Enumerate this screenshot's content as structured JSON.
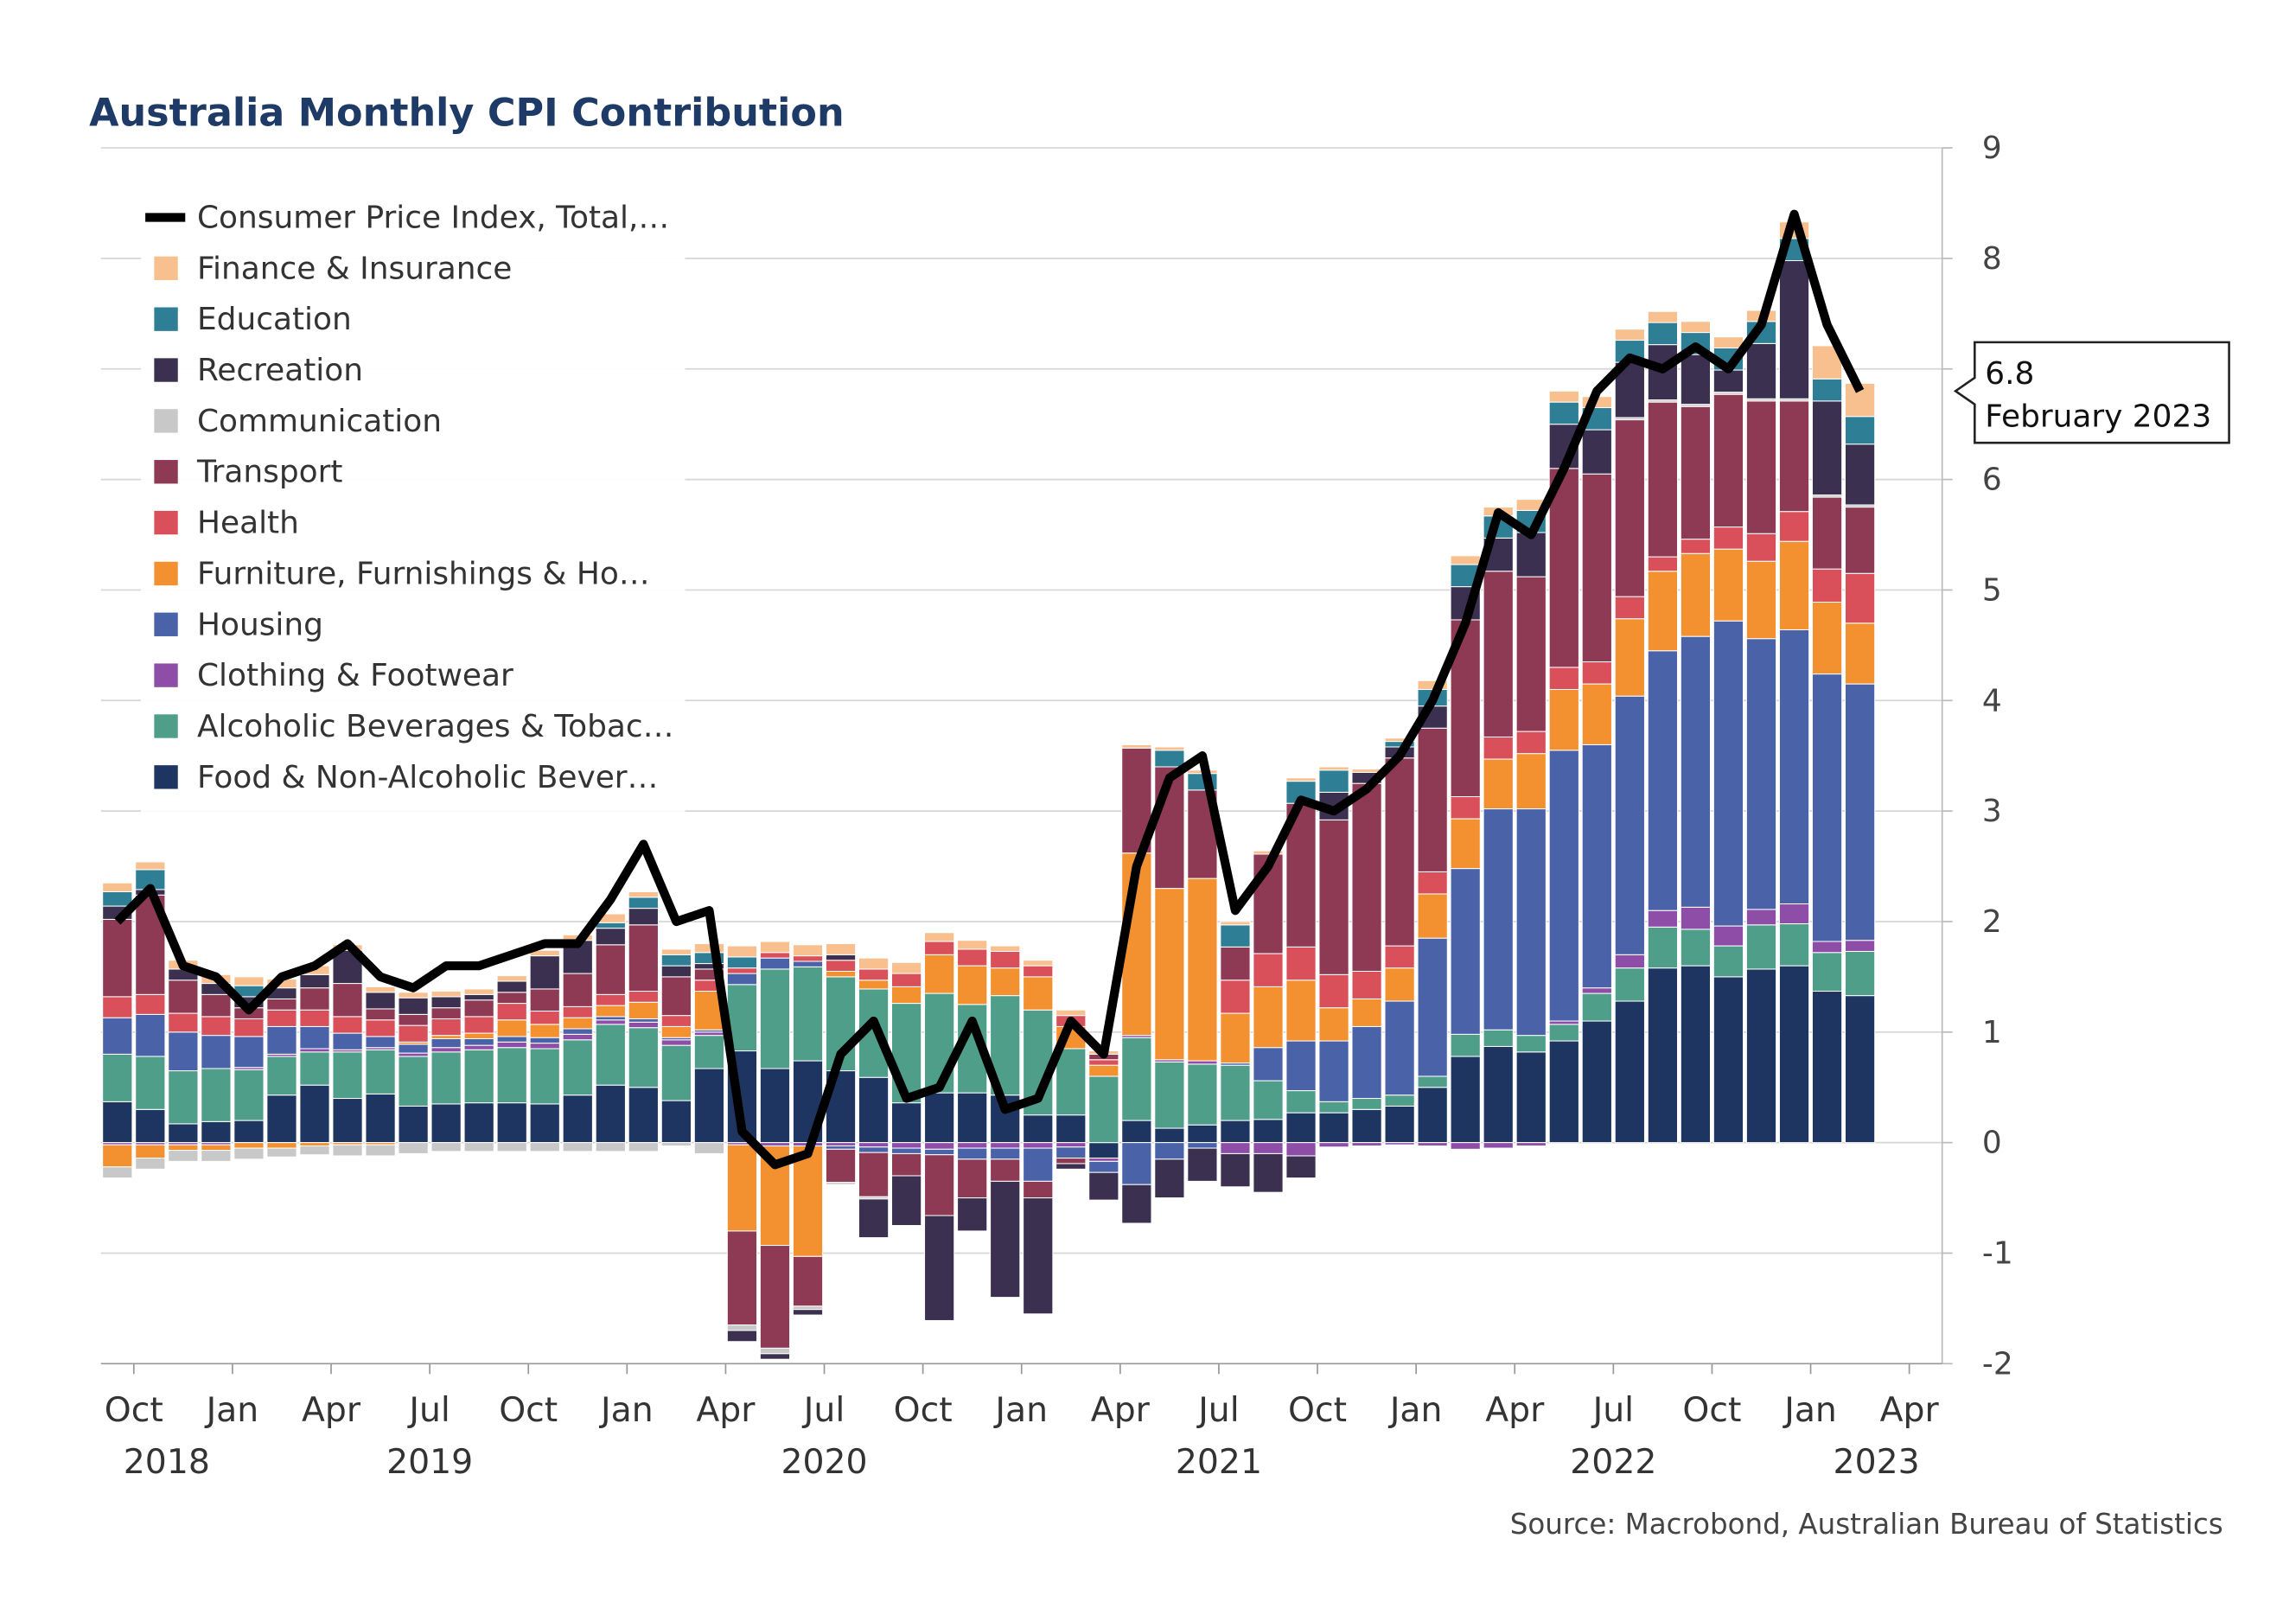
{
  "chart_data": {
    "type": "bar",
    "stacked": true,
    "title": "Australia Monthly CPI Contribution",
    "source": "Source: Macrobond, Australian Bureau of Statistics",
    "annotation": {
      "text": "February 2023"
    },
    "x": [
      "2018-09",
      "2018-10",
      "2018-11",
      "2018-12",
      "2019-01",
      "2019-02",
      "2019-03",
      "2019-04",
      "2019-05",
      "2019-06",
      "2019-07",
      "2019-08",
      "2019-09",
      "2019-10",
      "2019-11",
      "2019-12",
      "2020-01",
      "2020-02",
      "2020-03",
      "2020-04",
      "2020-05",
      "2020-06",
      "2020-07",
      "2020-08",
      "2020-09",
      "2020-10",
      "2020-11",
      "2020-12",
      "2021-01",
      "2021-02",
      "2021-03",
      "2021-04",
      "2021-05",
      "2021-06",
      "2021-07",
      "2021-08",
      "2021-09",
      "2021-10",
      "2021-11",
      "2021-12",
      "2022-01",
      "2022-02",
      "2022-03",
      "2022-04",
      "2022-05",
      "2022-06",
      "2022-07",
      "2022-08",
      "2022-09",
      "2022-10",
      "2022-11",
      "2022-12",
      "2023-01",
      "2023-02"
    ],
    "xlim": [
      "2018-09",
      "2023-05"
    ],
    "xticks": [
      {
        "value": "2018-10",
        "label": "Oct"
      },
      {
        "value": "2019-01",
        "label": "Jan"
      },
      {
        "value": "2019-04",
        "label": "Apr"
      },
      {
        "value": "2019-07",
        "label": "Jul"
      },
      {
        "value": "2019-10",
        "label": "Oct"
      },
      {
        "value": "2020-01",
        "label": "Jan"
      },
      {
        "value": "2020-04",
        "label": "Apr"
      },
      {
        "value": "2020-07",
        "label": "Jul"
      },
      {
        "value": "2020-10",
        "label": "Oct"
      },
      {
        "value": "2021-01",
        "label": "Jan"
      },
      {
        "value": "2021-04",
        "label": "Apr"
      },
      {
        "value": "2021-07",
        "label": "Jul"
      },
      {
        "value": "2021-10",
        "label": "Oct"
      },
      {
        "value": "2022-01",
        "label": "Jan"
      },
      {
        "value": "2022-04",
        "label": "Apr"
      },
      {
        "value": "2022-07",
        "label": "Jul"
      },
      {
        "value": "2022-10",
        "label": "Oct"
      },
      {
        "value": "2023-01",
        "label": "Jan"
      },
      {
        "value": "2023-04",
        "label": "Apr"
      }
    ],
    "year_ticks": [
      2018,
      2019,
      2020,
      2021,
      2022,
      2023
    ],
    "ylim": [
      -2,
      9
    ],
    "yticks": [
      -2,
      -1,
      0,
      1,
      2,
      3,
      4,
      5,
      6,
      7,
      8,
      9
    ],
    "y_axis_side": "right",
    "grid": true,
    "legend": "upper left",
    "series": [
      {
        "name": "Consumer Price Index, Total,…",
        "type": "line",
        "color": "#000000",
        "values": [
          2.0,
          2.3,
          1.6,
          1.5,
          1.2,
          1.5,
          1.6,
          1.8,
          1.5,
          1.4,
          1.6,
          1.6,
          1.7,
          1.8,
          1.8,
          2.2,
          2.7,
          2.0,
          2.1,
          0.1,
          -0.2,
          -0.1,
          0.8,
          1.1,
          0.4,
          0.5,
          1.1,
          0.3,
          0.4,
          1.1,
          0.8,
          2.5,
          3.3,
          3.5,
          2.1,
          2.5,
          3.1,
          3.0,
          3.2,
          3.5,
          4.0,
          4.7,
          5.7,
          5.5,
          6.1,
          6.8,
          7.1,
          7.0,
          7.2,
          7.0,
          7.4,
          8.4,
          7.4,
          6.8
        ]
      },
      {
        "name": "Finance & Insurance",
        "color": "#f8c08e",
        "values": [
          0.08,
          0.07,
          0.08,
          0.08,
          0.08,
          0.08,
          0.08,
          0.05,
          0.05,
          0.05,
          0.05,
          0.05,
          0.05,
          0.05,
          0.05,
          0.08,
          0.05,
          0.05,
          0.08,
          0.1,
          0.1,
          0.1,
          0.1,
          0.1,
          0.1,
          0.08,
          0.08,
          0.05,
          0.05,
          0.05,
          0.03,
          0.03,
          0.03,
          0.03,
          0.03,
          0.03,
          0.03,
          0.03,
          0.03,
          0.03,
          0.08,
          0.08,
          0.08,
          0.1,
          0.1,
          0.1,
          0.1,
          0.1,
          0.1,
          0.1,
          0.1,
          0.15,
          0.3,
          0.3
        ]
      },
      {
        "name": "Education",
        "color": "#2e7f96",
        "values": [
          0.13,
          0.18,
          0,
          0,
          0.1,
          0,
          0,
          0,
          0,
          0,
          0,
          0,
          0,
          0,
          0,
          0.05,
          0.1,
          0.1,
          0.1,
          0.1,
          0,
          0,
          0,
          0,
          0,
          0,
          0,
          0,
          0,
          0,
          0,
          0,
          0.15,
          0.15,
          0.2,
          0,
          0.2,
          0.2,
          0,
          0.05,
          0.15,
          0.2,
          0.2,
          0.2,
          0.2,
          0.2,
          0.2,
          0.2,
          0.2,
          0.2,
          0.2,
          0.2,
          0.2,
          0.25
        ]
      },
      {
        "name": "Recreation",
        "color": "#3b3050",
        "values": [
          0.12,
          0.05,
          0.1,
          0.1,
          0.1,
          0.1,
          0.12,
          0.3,
          0.15,
          0.15,
          0.1,
          0.05,
          0.1,
          0.3,
          0.3,
          0.15,
          0.15,
          0.1,
          0.05,
          -0.1,
          -0.05,
          -0.05,
          0.05,
          -0.35,
          -0.45,
          -0.95,
          -0.3,
          -1.05,
          -1.05,
          -0.05,
          -0.25,
          -0.35,
          -0.35,
          -0.3,
          -0.3,
          -0.35,
          -0.2,
          0.25,
          0.1,
          0.1,
          0.2,
          0.3,
          0.3,
          0.4,
          0.4,
          0.4,
          0.5,
          0.5,
          0.45,
          0.2,
          0.5,
          1.25,
          0.85,
          0.55
        ]
      },
      {
        "name": "Communication",
        "color": "#c8c8c8",
        "values": [
          -0.1,
          -0.1,
          -0.1,
          -0.1,
          -0.1,
          -0.08,
          -0.08,
          -0.1,
          -0.1,
          -0.1,
          -0.08,
          -0.08,
          -0.08,
          -0.08,
          -0.08,
          -0.08,
          -0.08,
          -0.03,
          -0.1,
          -0.05,
          -0.05,
          -0.03,
          -0.02,
          -0.02,
          0,
          0,
          0,
          0,
          0,
          0,
          0,
          0,
          0,
          0,
          0,
          0,
          0,
          0,
          0,
          0,
          0,
          0,
          0,
          0,
          0,
          0,
          0.02,
          0.02,
          0.02,
          0.02,
          0.02,
          0.02,
          0.02,
          0.02
        ]
      },
      {
        "name": "Transport",
        "color": "#8e3a55",
        "values": [
          0.7,
          0.9,
          0.3,
          0.2,
          0.1,
          0.1,
          0.2,
          0.3,
          0.1,
          0.1,
          0.1,
          0.15,
          0.1,
          0.2,
          0.3,
          0.45,
          0.6,
          0.35,
          0.1,
          -0.85,
          -0.93,
          -0.45,
          -0.3,
          -0.4,
          -0.2,
          -0.55,
          -0.35,
          -0.2,
          -0.15,
          -0.05,
          0.05,
          0.95,
          1.1,
          0.8,
          0.3,
          0.9,
          1.3,
          1.4,
          1.7,
          1.7,
          1.3,
          1.6,
          1.5,
          1.4,
          1.8,
          1.7,
          1.6,
          1.4,
          1.2,
          1.2,
          1.2,
          1.0,
          0.65,
          0.6
        ]
      },
      {
        "name": "Health",
        "color": "#d9505a",
        "values": [
          0.19,
          0.18,
          0.17,
          0.17,
          0.16,
          0.15,
          0.15,
          0.15,
          0.15,
          0.15,
          0.15,
          0.15,
          0.15,
          0.12,
          0.1,
          0.1,
          0.1,
          0.1,
          0.1,
          0.05,
          0.05,
          0.05,
          0.1,
          0.1,
          0.12,
          0.12,
          0.15,
          0.15,
          0.1,
          0.1,
          0.05,
          0,
          0,
          0,
          0.3,
          0.3,
          0.3,
          0.3,
          0.25,
          0.2,
          0.2,
          0.2,
          0.2,
          0.2,
          0.2,
          0.2,
          0.2,
          0.13,
          0.13,
          0.2,
          0.25,
          0.27,
          0.3,
          0.45
        ]
      },
      {
        "name": "Furniture, Furnishings & Ho…",
        "color": "#f3902f",
        "values": [
          -0.2,
          -0.12,
          -0.05,
          -0.05,
          -0.05,
          -0.05,
          -0.03,
          -0.02,
          -0.02,
          0.02,
          0.03,
          0.05,
          0.15,
          0.12,
          0.1,
          0.1,
          0.15,
          0.1,
          0.35,
          -0.78,
          -0.9,
          -1.0,
          0.05,
          0.08,
          0.15,
          0.35,
          0.35,
          0.25,
          0.3,
          0.2,
          0.1,
          1.65,
          1.55,
          1.65,
          0.45,
          0.55,
          0.55,
          0.3,
          0.25,
          0.3,
          0.4,
          0.45,
          0.45,
          0.5,
          0.55,
          0.55,
          0.7,
          0.72,
          0.75,
          0.65,
          0.7,
          0.8,
          0.65,
          0.55
        ]
      },
      {
        "name": "Housing",
        "color": "#4a62a8",
        "values": [
          0.33,
          0.38,
          0.35,
          0.3,
          0.28,
          0.25,
          0.2,
          0.15,
          0.1,
          0.08,
          0.08,
          0.06,
          0.05,
          0.05,
          0.05,
          0.03,
          0.03,
          0.02,
          0.02,
          0.1,
          0.1,
          0.05,
          -0.03,
          -0.05,
          -0.05,
          -0.05,
          -0.1,
          -0.1,
          -0.3,
          -0.1,
          -0.1,
          -0.38,
          -0.15,
          -0.05,
          0.02,
          0.3,
          0.45,
          0.55,
          0.65,
          0.85,
          1.25,
          1.5,
          2.0,
          2.05,
          2.45,
          2.2,
          2.34,
          2.35,
          2.45,
          2.76,
          2.45,
          2.48,
          2.42,
          2.32
        ]
      },
      {
        "name": "Clothing & Footwear",
        "color": "#8e4ea8",
        "values": [
          -0.02,
          -0.02,
          -0.02,
          -0.02,
          0.02,
          0.02,
          0.03,
          0.02,
          0.02,
          0.03,
          0.04,
          0.04,
          0.05,
          0.05,
          0.05,
          0.04,
          0.05,
          0.05,
          0.03,
          -0.02,
          -0.03,
          -0.03,
          -0.03,
          -0.04,
          -0.05,
          -0.06,
          -0.05,
          -0.05,
          -0.05,
          -0.04,
          -0.03,
          0.02,
          0.02,
          0.03,
          -0.1,
          -0.1,
          -0.12,
          -0.04,
          -0.03,
          -0.02,
          -0.03,
          -0.06,
          -0.05,
          -0.03,
          0.03,
          0.05,
          0.12,
          0.15,
          0.2,
          0.18,
          0.14,
          0.18,
          0.1,
          0.1
        ]
      },
      {
        "name": "Alcoholic Beverages & Tobac…",
        "color": "#4f9e89",
        "values": [
          0.43,
          0.48,
          0.48,
          0.48,
          0.46,
          0.35,
          0.3,
          0.42,
          0.4,
          0.45,
          0.47,
          0.48,
          0.5,
          0.5,
          0.5,
          0.55,
          0.54,
          0.5,
          0.3,
          0.6,
          0.9,
          0.85,
          0.85,
          0.8,
          0.9,
          0.9,
          0.8,
          0.9,
          0.95,
          0.6,
          0.6,
          0.75,
          0.6,
          0.55,
          0.5,
          0.35,
          0.2,
          0.1,
          0.1,
          0.1,
          0.1,
          0.2,
          0.15,
          0.15,
          0.15,
          0.25,
          0.3,
          0.37,
          0.33,
          0.28,
          0.4,
          0.38,
          0.35,
          0.4
        ]
      },
      {
        "name": "Food & Non-Alcoholic Bever…",
        "color": "#1d3560",
        "values": [
          0.37,
          0.3,
          0.17,
          0.19,
          0.2,
          0.43,
          0.52,
          0.4,
          0.44,
          0.33,
          0.35,
          0.36,
          0.36,
          0.35,
          0.43,
          0.52,
          0.5,
          0.38,
          0.67,
          0.83,
          0.67,
          0.74,
          0.65,
          0.59,
          0.36,
          0.45,
          0.45,
          0.43,
          0.25,
          0.25,
          -0.14,
          0.2,
          0.13,
          0.16,
          0.2,
          0.21,
          0.27,
          0.27,
          0.3,
          0.33,
          0.5,
          0.78,
          0.87,
          0.82,
          0.92,
          1.1,
          1.28,
          1.58,
          1.6,
          1.5,
          1.57,
          1.6,
          1.37,
          1.33
        ]
      }
    ]
  }
}
